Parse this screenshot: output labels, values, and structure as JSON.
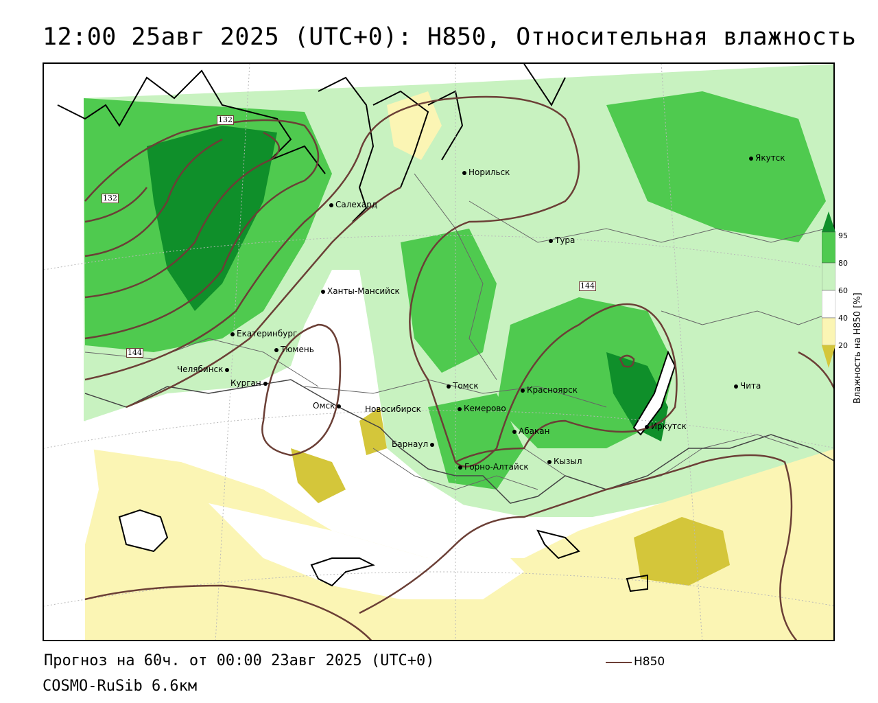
{
  "title": "12:00 25авг 2025 (UTC+0): H850, Относительная влажность",
  "footer": {
    "forecast": "Прогноз на 60ч. от 00:00 23авг 2025 (UTC+0)",
    "model": "COSMO-RuSib 6.6км",
    "contour_legend": "H850",
    "contour_color": "#6b3f36"
  },
  "legend": {
    "title": "Влажность на H850 [%]",
    "ticks": [
      "95",
      "80",
      "60",
      "40",
      "20"
    ],
    "colors": {
      "lt20": "#d4c63a",
      "20_40": "#fbf5b4",
      "40_60": "#ffffff",
      "60_80": "#c8f2c0",
      "80_95": "#4fca4f",
      "gt95": "#0f8f2a"
    }
  },
  "contour_labels": [
    "132",
    "132",
    "144",
    "144"
  ],
  "cities": [
    {
      "name": "Норильск"
    },
    {
      "name": "Якутск"
    },
    {
      "name": "Салехард"
    },
    {
      "name": "Тура"
    },
    {
      "name": "Ханты-Мансийск"
    },
    {
      "name": "Екатеринбург"
    },
    {
      "name": "Тюмень"
    },
    {
      "name": "Челябинск"
    },
    {
      "name": "Курган"
    },
    {
      "name": "Омск"
    },
    {
      "name": "Новосибирск"
    },
    {
      "name": "Томск"
    },
    {
      "name": "Кемерово"
    },
    {
      "name": "Красноярск"
    },
    {
      "name": "Абакан"
    },
    {
      "name": "Барнаул"
    },
    {
      "name": "Горно-Алтайск"
    },
    {
      "name": "Кызыл"
    },
    {
      "name": "Иркутск"
    },
    {
      "name": "Чита"
    }
  ]
}
